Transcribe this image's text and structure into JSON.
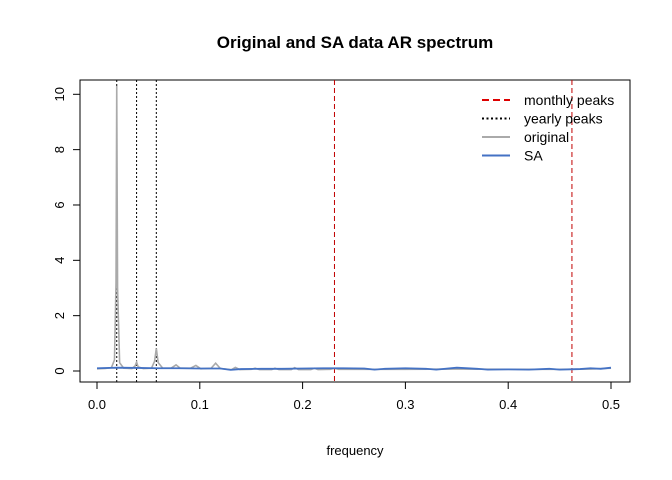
{
  "chart_data": {
    "type": "line",
    "title": "Original and SA data AR spectrum",
    "xlabel": "frequency",
    "ylabel": "",
    "xlim": [
      0.0,
      0.5
    ],
    "ylim": [
      0,
      10.3
    ],
    "x_ticks": [
      "0.0",
      "0.1",
      "0.2",
      "0.3",
      "0.4",
      "0.5"
    ],
    "y_ticks": [
      "0",
      "2",
      "4",
      "6",
      "8",
      "10"
    ],
    "grid": false,
    "legend_position": "top-right",
    "legend": [
      {
        "label": "monthly peaks",
        "color": "#dd0000",
        "style": "dashed"
      },
      {
        "label": "yearly peaks",
        "color": "#000000",
        "style": "dotted"
      },
      {
        "label": "original",
        "color": "#aaaaaa",
        "style": "solid"
      },
      {
        "label": "SA",
        "color": "#4472c4",
        "style": "solid"
      }
    ],
    "reference_lines": {
      "monthly_peaks": [
        0.231,
        0.462
      ],
      "yearly_peaks": [
        0.0192,
        0.0385,
        0.0577
      ]
    },
    "series": [
      {
        "name": "original",
        "color": "#aaaaaa",
        "points": [
          [
            0.0,
            0.08
          ],
          [
            0.008,
            0.09
          ],
          [
            0.014,
            0.12
          ],
          [
            0.017,
            0.4
          ],
          [
            0.0185,
            3.2
          ],
          [
            0.0192,
            10.3
          ],
          [
            0.02,
            3.0
          ],
          [
            0.022,
            0.3
          ],
          [
            0.026,
            0.1
          ],
          [
            0.034,
            0.09
          ],
          [
            0.037,
            0.18
          ],
          [
            0.0385,
            0.32
          ],
          [
            0.04,
            0.15
          ],
          [
            0.045,
            0.09
          ],
          [
            0.053,
            0.1
          ],
          [
            0.056,
            0.35
          ],
          [
            0.0577,
            0.82
          ],
          [
            0.0595,
            0.3
          ],
          [
            0.064,
            0.1
          ],
          [
            0.072,
            0.1
          ],
          [
            0.0769,
            0.22
          ],
          [
            0.081,
            0.1
          ],
          [
            0.091,
            0.1
          ],
          [
            0.0962,
            0.2
          ],
          [
            0.101,
            0.08
          ],
          [
            0.111,
            0.1
          ],
          [
            0.1154,
            0.28
          ],
          [
            0.12,
            0.09
          ],
          [
            0.131,
            0.05
          ],
          [
            0.1346,
            0.13
          ],
          [
            0.139,
            0.05
          ],
          [
            0.15,
            0.06
          ],
          [
            0.1538,
            0.1
          ],
          [
            0.158,
            0.05
          ],
          [
            0.17,
            0.05
          ],
          [
            0.1731,
            0.1
          ],
          [
            0.177,
            0.05
          ],
          [
            0.189,
            0.05
          ],
          [
            0.1923,
            0.12
          ],
          [
            0.196,
            0.05
          ],
          [
            0.208,
            0.05
          ],
          [
            0.2115,
            0.1
          ],
          [
            0.215,
            0.05
          ],
          [
            0.227,
            0.06
          ],
          [
            0.2308,
            0.1
          ],
          [
            0.235,
            0.06
          ],
          [
            0.25,
            0.06
          ],
          [
            0.3,
            0.06
          ],
          [
            0.35,
            0.07
          ],
          [
            0.4,
            0.06
          ],
          [
            0.45,
            0.06
          ],
          [
            0.48,
            0.07
          ],
          [
            0.5,
            0.1
          ]
        ]
      },
      {
        "name": "SA",
        "color": "#4472c4",
        "points": [
          [
            0.0,
            0.1
          ],
          [
            0.02,
            0.12
          ],
          [
            0.04,
            0.11
          ],
          [
            0.06,
            0.1
          ],
          [
            0.08,
            0.1
          ],
          [
            0.1,
            0.09
          ],
          [
            0.12,
            0.09
          ],
          [
            0.13,
            0.04
          ],
          [
            0.14,
            0.07
          ],
          [
            0.16,
            0.08
          ],
          [
            0.18,
            0.08
          ],
          [
            0.2,
            0.09
          ],
          [
            0.22,
            0.1
          ],
          [
            0.24,
            0.1
          ],
          [
            0.26,
            0.09
          ],
          [
            0.27,
            0.05
          ],
          [
            0.28,
            0.08
          ],
          [
            0.3,
            0.1
          ],
          [
            0.32,
            0.08
          ],
          [
            0.33,
            0.05
          ],
          [
            0.35,
            0.12
          ],
          [
            0.37,
            0.08
          ],
          [
            0.38,
            0.05
          ],
          [
            0.4,
            0.06
          ],
          [
            0.42,
            0.05
          ],
          [
            0.44,
            0.08
          ],
          [
            0.45,
            0.05
          ],
          [
            0.47,
            0.07
          ],
          [
            0.48,
            0.1
          ],
          [
            0.49,
            0.08
          ],
          [
            0.5,
            0.12
          ]
        ]
      }
    ]
  }
}
